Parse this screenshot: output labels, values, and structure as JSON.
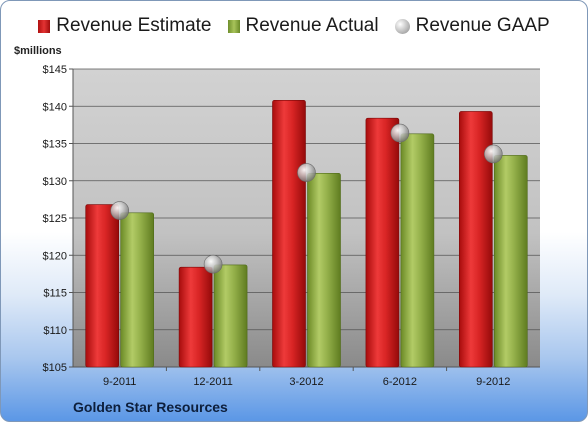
{
  "legend": {
    "estimate": "Revenue Estimate",
    "actual": "Revenue Actual",
    "gaap": "Revenue GAAP"
  },
  "unit_label": "$millions",
  "company": "Golden Star Resources",
  "colors": {
    "estimate": "#d62424",
    "actual": "#8fac45",
    "gaap": "#b8b8b8"
  },
  "chart_data": {
    "type": "bar",
    "categories": [
      "9-2011",
      "12-2011",
      "3-2012",
      "6-2012",
      "9-2012"
    ],
    "series": [
      {
        "name": "Revenue Estimate",
        "values": [
          126.8,
          118.4,
          140.8,
          138.4,
          139.3
        ]
      },
      {
        "name": "Revenue Actual",
        "values": [
          125.7,
          118.7,
          131.0,
          136.3,
          133.4
        ]
      },
      {
        "name": "Revenue GAAP",
        "values": [
          126.0,
          118.8,
          131.1,
          136.4,
          133.6
        ]
      }
    ],
    "ylim": [
      105,
      145
    ],
    "yticks": [
      "$105",
      "$110",
      "$115",
      "$120",
      "$125",
      "$130",
      "$135",
      "$140",
      "$145"
    ],
    "ytick_values": [
      105,
      110,
      115,
      120,
      125,
      130,
      135,
      140,
      145
    ],
    "ylabel": "$millions",
    "grid": true,
    "legend_position": "top"
  }
}
